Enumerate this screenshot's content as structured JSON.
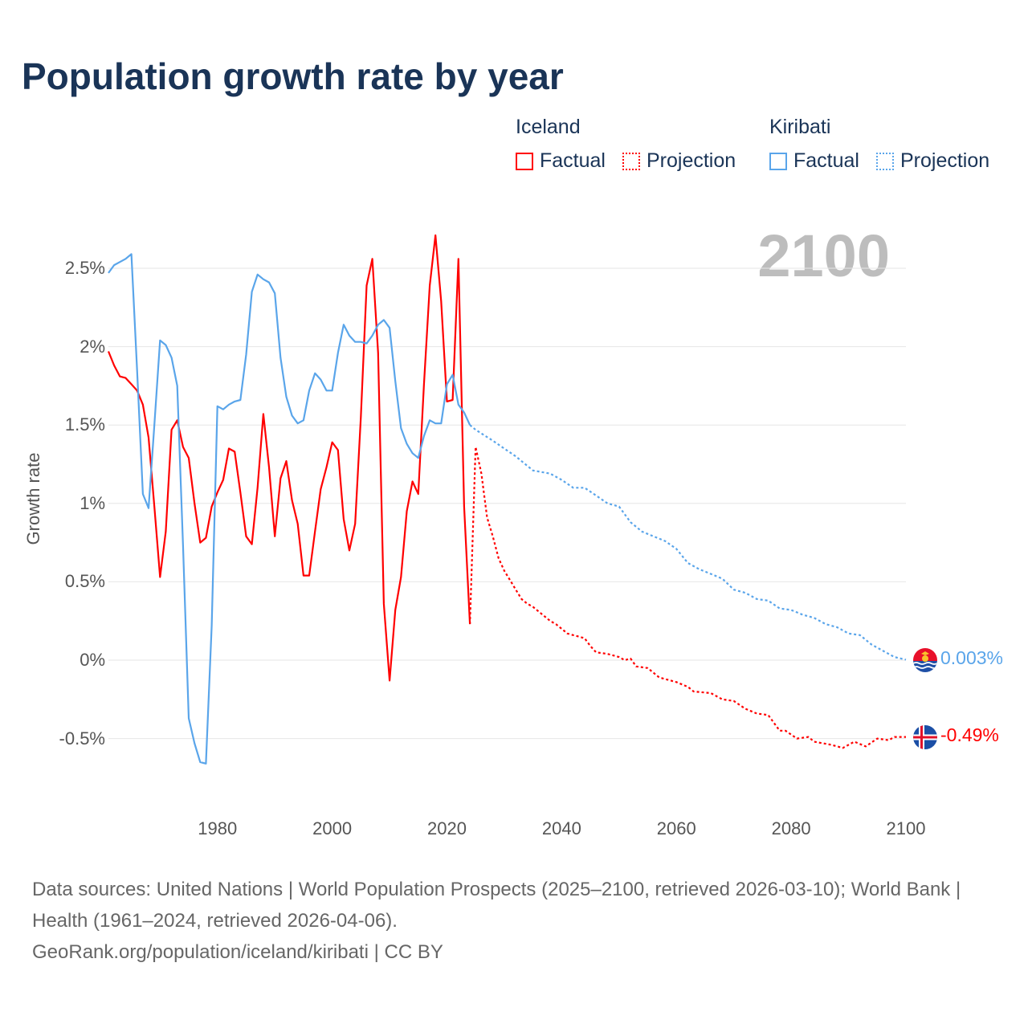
{
  "title": "Population growth rate by year",
  "year_display": "2100",
  "legend": {
    "groups": [
      {
        "country": "Iceland",
        "factual": "Factual",
        "projection": "Projection",
        "color": "#ff0000"
      },
      {
        "country": "Kiribati",
        "factual": "Factual",
        "projection": "Projection",
        "color": "#5aa5ea"
      }
    ]
  },
  "end_labels": {
    "kiribati": "0.003%",
    "iceland": "-0.49%"
  },
  "footer": {
    "sources": "Data sources: United Nations | World Population Prospects (2025–2100, retrieved 2026-03-10); World Bank | Health (1961–2024, retrieved 2026-04-06).",
    "link": "GeoRank.org/population/iceland/kiribati | CC BY"
  },
  "chart_data": {
    "type": "line",
    "title": "Population growth rate by year",
    "xlabel": "",
    "ylabel": "Growth rate",
    "xlim": [
      1961,
      2100
    ],
    "ylim": [
      -0.75,
      2.75
    ],
    "y_ticks": [
      -0.5,
      0,
      0.5,
      1,
      1.5,
      2,
      2.5
    ],
    "y_tick_labels": [
      "-0.5%",
      "0%",
      "0.5%",
      "1%",
      "1.5%",
      "2%",
      "2.5%"
    ],
    "x_ticks": [
      1980,
      2000,
      2020,
      2040,
      2060,
      2080,
      2100
    ],
    "x_tick_labels": [
      "1980",
      "2000",
      "2020",
      "2040",
      "2060",
      "2080",
      "2100"
    ],
    "grid": true,
    "legend_position": "top-right",
    "series": [
      {
        "name": "Iceland Factual",
        "color": "#ff0000",
        "dash": false,
        "start_year": 1961,
        "values": [
          1.97,
          1.88,
          1.81,
          1.8,
          1.76,
          1.72,
          1.63,
          1.42,
          0.98,
          0.53,
          0.82,
          1.47,
          1.53,
          1.36,
          1.29,
          1.0,
          0.75,
          0.78,
          0.98,
          1.07,
          1.15,
          1.35,
          1.33,
          1.07,
          0.79,
          0.74,
          1.1,
          1.57,
          1.23,
          0.79,
          1.16,
          1.27,
          1.02,
          0.87,
          0.54,
          0.54,
          0.82,
          1.09,
          1.23,
          1.39,
          1.34,
          0.9,
          0.7,
          0.87,
          1.55,
          2.39,
          2.56,
          1.96,
          0.36,
          -0.13,
          0.32,
          0.53,
          0.95,
          1.14,
          1.06,
          1.76,
          2.39,
          2.71,
          2.29,
          1.65,
          1.66,
          2.56,
          0.98,
          0.23
        ]
      },
      {
        "name": "Iceland Projection",
        "color": "#ff0000",
        "dash": true,
        "points": [
          [
            2024,
            0.23
          ],
          [
            2025,
            1.36
          ],
          [
            2026,
            1.19
          ],
          [
            2027,
            0.91
          ],
          [
            2028,
            0.79
          ],
          [
            2029,
            0.65
          ],
          [
            2030,
            0.57
          ],
          [
            2031,
            0.51
          ],
          [
            2032,
            0.45
          ],
          [
            2033,
            0.39
          ],
          [
            2034,
            0.36
          ],
          [
            2035,
            0.34
          ],
          [
            2036,
            0.31
          ],
          [
            2037,
            0.28
          ],
          [
            2038,
            0.25
          ],
          [
            2039,
            0.23
          ],
          [
            2040,
            0.2
          ],
          [
            2041,
            0.17
          ],
          [
            2042,
            0.16
          ],
          [
            2043,
            0.15
          ],
          [
            2044,
            0.14
          ],
          [
            2045,
            0.09
          ],
          [
            2046,
            0.05
          ],
          [
            2048,
            0.04
          ],
          [
            2050,
            0.02
          ],
          [
            2051,
            0.0
          ],
          [
            2052,
            0.01
          ],
          [
            2053,
            -0.04
          ],
          [
            2055,
            -0.05
          ],
          [
            2057,
            -0.11
          ],
          [
            2060,
            -0.14
          ],
          [
            2062,
            -0.17
          ],
          [
            2063,
            -0.2
          ],
          [
            2066,
            -0.21
          ],
          [
            2068,
            -0.25
          ],
          [
            2070,
            -0.26
          ],
          [
            2072,
            -0.31
          ],
          [
            2074,
            -0.34
          ],
          [
            2076,
            -0.35
          ],
          [
            2078,
            -0.45
          ],
          [
            2079,
            -0.45
          ],
          [
            2081,
            -0.5
          ],
          [
            2083,
            -0.49
          ],
          [
            2084,
            -0.52
          ],
          [
            2087,
            -0.54
          ],
          [
            2089,
            -0.56
          ],
          [
            2091,
            -0.52
          ],
          [
            2093,
            -0.55
          ],
          [
            2095,
            -0.5
          ],
          [
            2097,
            -0.51
          ],
          [
            2098,
            -0.49
          ],
          [
            2100,
            -0.49
          ]
        ]
      },
      {
        "name": "Kiribati Factual",
        "color": "#5aa5ea",
        "dash": false,
        "start_year": 1961,
        "values": [
          2.47,
          2.52,
          2.54,
          2.56,
          2.59,
          1.85,
          1.06,
          0.97,
          1.5,
          2.04,
          2.01,
          1.93,
          1.75,
          0.73,
          -0.37,
          -0.53,
          -0.65,
          -0.66,
          0.22,
          1.62,
          1.6,
          1.63,
          1.65,
          1.66,
          1.95,
          2.35,
          2.46,
          2.43,
          2.41,
          2.34,
          1.93,
          1.68,
          1.56,
          1.51,
          1.53,
          1.72,
          1.83,
          1.79,
          1.72,
          1.72,
          1.96,
          2.14,
          2.07,
          2.03,
          2.03,
          2.02,
          2.07,
          2.14,
          2.17,
          2.12,
          1.78,
          1.48,
          1.38,
          1.32,
          1.29,
          1.43,
          1.53,
          1.51,
          1.51,
          1.76,
          1.82,
          1.63,
          1.58,
          1.5
        ]
      },
      {
        "name": "Kiribati Projection",
        "color": "#5aa5ea",
        "dash": true,
        "points": [
          [
            2024,
            1.5
          ],
          [
            2025,
            1.47
          ],
          [
            2028,
            1.4
          ],
          [
            2030,
            1.35
          ],
          [
            2032,
            1.3
          ],
          [
            2035,
            1.21
          ],
          [
            2038,
            1.19
          ],
          [
            2040,
            1.15
          ],
          [
            2042,
            1.1
          ],
          [
            2044,
            1.1
          ],
          [
            2046,
            1.05
          ],
          [
            2048,
            1.0
          ],
          [
            2050,
            0.98
          ],
          [
            2052,
            0.88
          ],
          [
            2054,
            0.82
          ],
          [
            2056,
            0.79
          ],
          [
            2058,
            0.76
          ],
          [
            2060,
            0.71
          ],
          [
            2062,
            0.62
          ],
          [
            2064,
            0.58
          ],
          [
            2066,
            0.55
          ],
          [
            2068,
            0.52
          ],
          [
            2070,
            0.45
          ],
          [
            2072,
            0.43
          ],
          [
            2074,
            0.39
          ],
          [
            2076,
            0.38
          ],
          [
            2078,
            0.33
          ],
          [
            2080,
            0.32
          ],
          [
            2082,
            0.29
          ],
          [
            2084,
            0.27
          ],
          [
            2086,
            0.23
          ],
          [
            2088,
            0.21
          ],
          [
            2090,
            0.17
          ],
          [
            2092,
            0.16
          ],
          [
            2094,
            0.1
          ],
          [
            2096,
            0.06
          ],
          [
            2098,
            0.02
          ],
          [
            2100,
            0.003
          ]
        ]
      }
    ]
  }
}
